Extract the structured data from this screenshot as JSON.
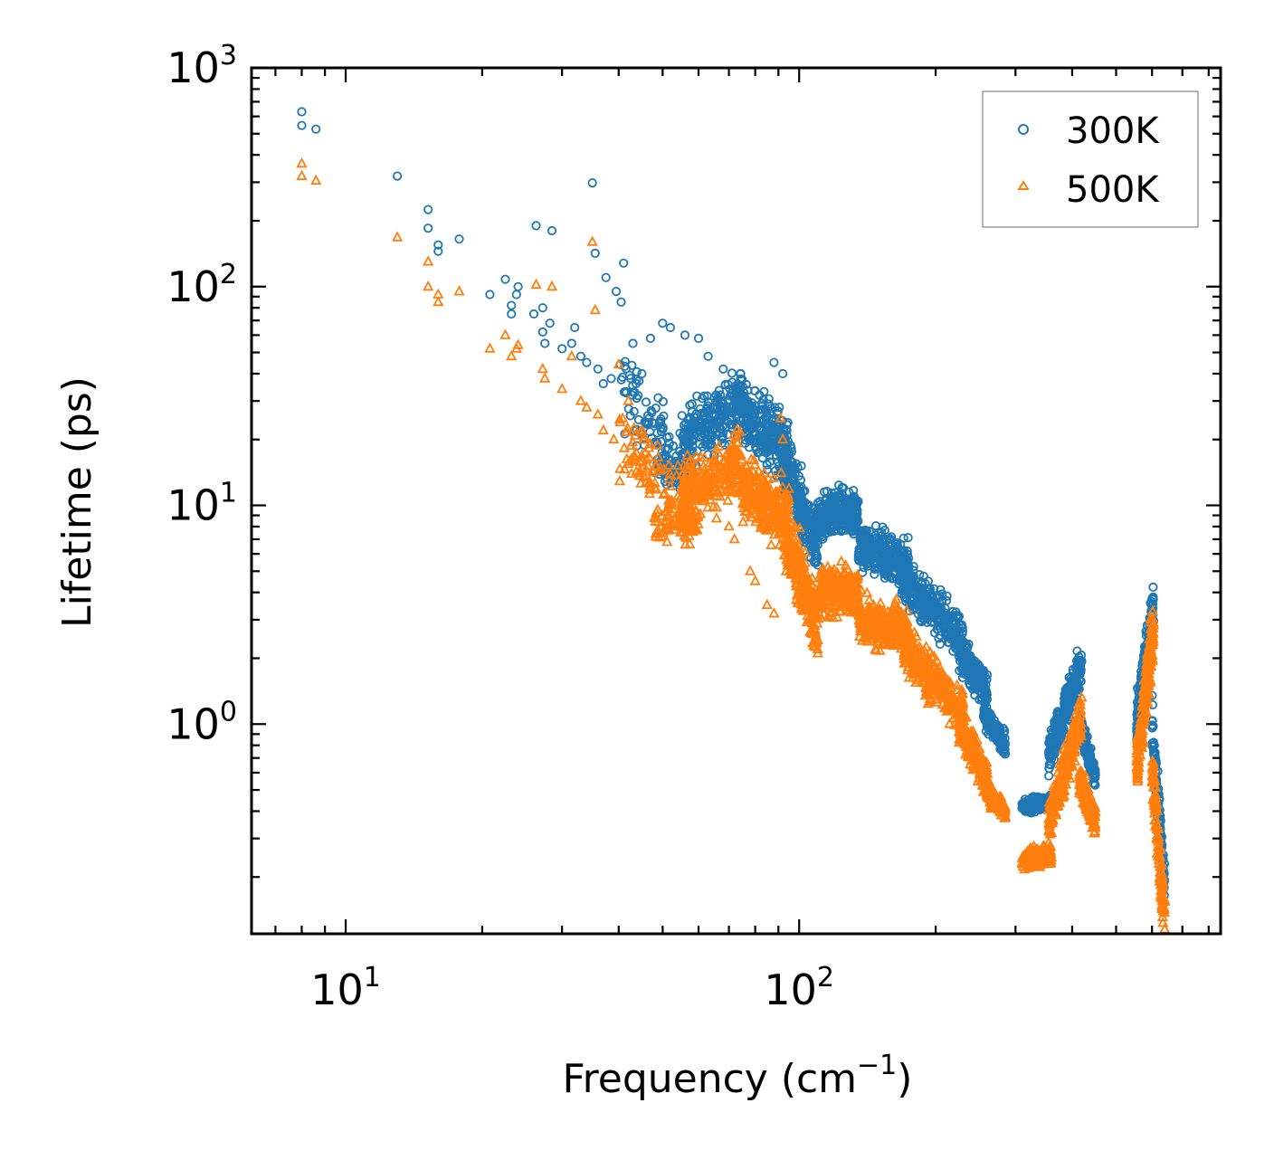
{
  "chart_data": {
    "type": "scatter",
    "title": "",
    "xlabel": "Frequency (cm",
    "xlabel_sup": "−1",
    "xlabel_suffix": ")",
    "ylabel": "Lifetime (ps)",
    "xscale": "log",
    "yscale": "log",
    "xlim": [
      6.2,
      850
    ],
    "ylim": [
      0.11,
      1000
    ],
    "x_ticks": [
      {
        "base": "10",
        "exp": "1",
        "value": 10
      },
      {
        "base": "10",
        "exp": "2",
        "value": 100
      }
    ],
    "y_ticks": [
      {
        "base": "10",
        "exp": "0",
        "value": 1
      },
      {
        "base": "10",
        "exp": "1",
        "value": 10
      },
      {
        "base": "10",
        "exp": "2",
        "value": 100
      },
      {
        "base": "10",
        "exp": "3",
        "value": 1000
      }
    ],
    "legend_position": "top-right",
    "series": [
      {
        "name": "300K",
        "marker": "circle",
        "color": "#1f77b4",
        "points": [
          [
            8.0,
            630
          ],
          [
            8.0,
            545
          ],
          [
            8.6,
            525
          ],
          [
            13.0,
            320
          ],
          [
            15.2,
            225
          ],
          [
            15.2,
            185
          ],
          [
            16.0,
            155
          ],
          [
            16.0,
            145
          ],
          [
            17.8,
            165
          ],
          [
            20.8,
            92
          ],
          [
            22.5,
            108
          ],
          [
            23.2,
            82
          ],
          [
            23.2,
            75
          ],
          [
            23.8,
            92
          ],
          [
            24.0,
            100
          ],
          [
            26.0,
            75
          ],
          [
            26.3,
            190
          ],
          [
            27.2,
            80
          ],
          [
            27.2,
            62
          ],
          [
            27.5,
            55
          ],
          [
            28.2,
            68
          ],
          [
            28.5,
            180
          ],
          [
            30.0,
            52
          ],
          [
            31.5,
            55
          ],
          [
            32.0,
            65
          ],
          [
            33.0,
            48
          ],
          [
            34.0,
            45
          ],
          [
            35.0,
            298
          ],
          [
            35.5,
            142
          ],
          [
            36.0,
            42
          ],
          [
            37.0,
            36
          ],
          [
            37.5,
            110
          ],
          [
            38.5,
            38
          ],
          [
            39.5,
            95
          ],
          [
            40.5,
            85
          ],
          [
            41.0,
            128
          ],
          [
            43.0,
            55
          ],
          [
            45.0,
            40
          ],
          [
            47.0,
            58
          ],
          [
            50.0,
            68
          ],
          [
            52.0,
            65
          ],
          [
            56.0,
            60
          ],
          [
            60.0,
            58
          ],
          [
            63.0,
            48
          ],
          [
            68.0,
            42
          ],
          [
            75.0,
            35
          ],
          [
            88.0,
            45
          ],
          [
            92.0,
            40
          ]
        ],
        "segments": [
          {
            "x0": 40,
            "x1": 55,
            "ylog_start": 1.55,
            "ylog_end": 1.18,
            "spread": 0.25,
            "count": 90
          },
          {
            "x0": 48,
            "x1": 58,
            "ylog_start": 1.2,
            "ylog_end": 1.15,
            "spread": 0.12,
            "count": 60
          },
          {
            "x0": 55,
            "x1": 75,
            "ylog_start": 1.3,
            "ylog_end": 1.48,
            "spread": 0.2,
            "count": 260
          },
          {
            "x0": 75,
            "x1": 95,
            "ylog_start": 1.4,
            "ylog_end": 1.25,
            "spread": 0.22,
            "count": 260
          },
          {
            "x0": 92,
            "x1": 110,
            "ylog_start": 1.2,
            "ylog_end": 0.8,
            "spread": 0.22,
            "count": 240
          },
          {
            "x0": 110,
            "x1": 135,
            "ylog_start": 0.95,
            "ylog_end": 0.98,
            "spread": 0.15,
            "count": 260
          },
          {
            "x0": 135,
            "x1": 175,
            "ylog_start": 0.82,
            "ylog_end": 0.72,
            "spread": 0.16,
            "count": 300
          },
          {
            "x0": 170,
            "x1": 230,
            "ylog_start": 0.65,
            "ylog_end": 0.4,
            "spread": 0.15,
            "count": 280
          },
          {
            "x0": 225,
            "x1": 260,
            "ylog_start": 0.32,
            "ylog_end": 0.15,
            "spread": 0.12,
            "count": 200
          },
          {
            "x0": 255,
            "x1": 285,
            "ylog_start": 0.05,
            "ylog_end": -0.1,
            "spread": 0.08,
            "count": 140
          },
          {
            "x0": 310,
            "x1": 360,
            "ylog_start": -0.38,
            "ylog_end": -0.35,
            "spread": 0.05,
            "count": 180
          },
          {
            "x0": 355,
            "x1": 420,
            "ylog_start": -0.15,
            "ylog_end": 0.28,
            "spread": 0.14,
            "count": 280
          },
          {
            "x0": 415,
            "x1": 450,
            "ylog_start": 0.0,
            "ylog_end": -0.25,
            "spread": 0.08,
            "count": 160
          },
          {
            "x0": 555,
            "x1": 605,
            "ylog_start": 0.0,
            "ylog_end": 0.55,
            "spread": 0.16,
            "count": 220
          },
          {
            "x0": 600,
            "x1": 640,
            "ylog_start": 0.0,
            "ylog_end": -0.75,
            "spread": 0.16,
            "count": 120
          }
        ]
      },
      {
        "name": "500K",
        "marker": "triangle",
        "color": "#ff7f0e",
        "points": [
          [
            8.0,
            365
          ],
          [
            8.0,
            320
          ],
          [
            8.6,
            305
          ],
          [
            13.0,
            168
          ],
          [
            15.2,
            130
          ],
          [
            15.2,
            100
          ],
          [
            16.0,
            92
          ],
          [
            16.0,
            85
          ],
          [
            17.8,
            95
          ],
          [
            20.8,
            52
          ],
          [
            22.5,
            60
          ],
          [
            23.2,
            48
          ],
          [
            23.8,
            52
          ],
          [
            24.0,
            54
          ],
          [
            26.3,
            102
          ],
          [
            27.2,
            42
          ],
          [
            27.5,
            38
          ],
          [
            28.5,
            100
          ],
          [
            30.0,
            34
          ],
          [
            31.5,
            48
          ],
          [
            33.0,
            30
          ],
          [
            34.0,
            28
          ],
          [
            35.0,
            160
          ],
          [
            35.5,
            78
          ],
          [
            36.0,
            26
          ],
          [
            37.0,
            22
          ],
          [
            39.0,
            20
          ],
          [
            40.0,
            44
          ],
          [
            42.0,
            30
          ],
          [
            45.0,
            22
          ],
          [
            48.0,
            12
          ],
          [
            52.0,
            10
          ],
          [
            58.0,
            9
          ],
          [
            70.0,
            8
          ],
          [
            72.0,
            7
          ],
          [
            78.0,
            5
          ],
          [
            80.0,
            4.5
          ],
          [
            85.0,
            3.5
          ],
          [
            88.0,
            3.2
          ],
          [
            91.0,
            25
          ],
          [
            92.0,
            20
          ]
        ],
        "segments": [
          {
            "x0": 40,
            "x1": 58,
            "ylog_start": 1.3,
            "ylog_end": 0.95,
            "spread": 0.22,
            "count": 100
          },
          {
            "x0": 48,
            "x1": 60,
            "ylog_start": 0.9,
            "ylog_end": 0.92,
            "spread": 0.1,
            "count": 80
          },
          {
            "x0": 55,
            "x1": 75,
            "ylog_start": 1.05,
            "ylog_end": 1.18,
            "spread": 0.2,
            "count": 260
          },
          {
            "x0": 75,
            "x1": 95,
            "ylog_start": 1.08,
            "ylog_end": 0.95,
            "spread": 0.22,
            "count": 260
          },
          {
            "x0": 92,
            "x1": 110,
            "ylog_start": 0.9,
            "ylog_end": 0.45,
            "spread": 0.22,
            "count": 240
          },
          {
            "x0": 110,
            "x1": 135,
            "ylog_start": 0.6,
            "ylog_end": 0.62,
            "spread": 0.16,
            "count": 260
          },
          {
            "x0": 135,
            "x1": 175,
            "ylog_start": 0.48,
            "ylog_end": 0.42,
            "spread": 0.15,
            "count": 300
          },
          {
            "x0": 170,
            "x1": 230,
            "ylog_start": 0.35,
            "ylog_end": 0.05,
            "spread": 0.15,
            "count": 280
          },
          {
            "x0": 225,
            "x1": 260,
            "ylog_start": 0.0,
            "ylog_end": -0.25,
            "spread": 0.12,
            "count": 200
          },
          {
            "x0": 255,
            "x1": 285,
            "ylog_start": -0.28,
            "ylog_end": -0.4,
            "spread": 0.07,
            "count": 140
          },
          {
            "x0": 310,
            "x1": 360,
            "ylog_start": -0.62,
            "ylog_end": -0.6,
            "spread": 0.06,
            "count": 180
          },
          {
            "x0": 355,
            "x1": 420,
            "ylog_start": -0.45,
            "ylog_end": 0.05,
            "spread": 0.15,
            "count": 280
          },
          {
            "x0": 415,
            "x1": 450,
            "ylog_start": -0.25,
            "ylog_end": -0.45,
            "spread": 0.1,
            "count": 160
          },
          {
            "x0": 555,
            "x1": 605,
            "ylog_start": -0.2,
            "ylog_end": 0.45,
            "spread": 0.18,
            "count": 220
          },
          {
            "x0": 600,
            "x1": 640,
            "ylog_start": -0.2,
            "ylog_end": -0.9,
            "spread": 0.16,
            "count": 120
          }
        ]
      }
    ]
  }
}
